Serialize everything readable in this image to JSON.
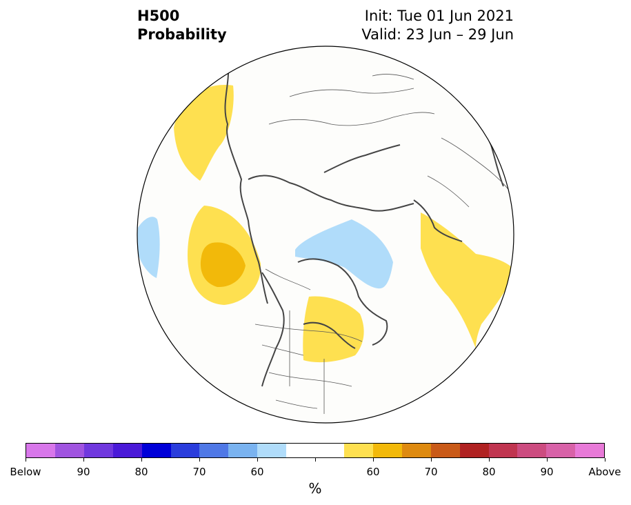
{
  "title": {
    "line1": "H500",
    "line2": "Probability"
  },
  "info": {
    "init": "Init: Tue 01 Jun 2021",
    "valid": "Valid: 23 Jun – 29 Jun"
  },
  "colorbar": {
    "colors": [
      "#d877ea",
      "#a054e0",
      "#7038de",
      "#4a1ad8",
      "#0000d8",
      "#2a3ddc",
      "#4f78e6",
      "#7ab3f0",
      "#b0dcfa",
      "#ffffff",
      "#ffffff",
      "#fee050",
      "#f2b90a",
      "#de8a10",
      "#c95a18",
      "#b02222",
      "#c03550",
      "#cc4c80",
      "#d862a8",
      "#e87ad8"
    ],
    "labels": [
      "Below",
      "90",
      "80",
      "70",
      "60",
      "60",
      "70",
      "80",
      "90",
      "Above"
    ],
    "unit": "%"
  },
  "map": {
    "projection": "north-polar-stereographic",
    "anomalies": [
      {
        "name": "northeast-pacific-above",
        "category": "Above",
        "level": "50-60",
        "color": "#fee050"
      },
      {
        "name": "east-pacific-above",
        "category": "Above",
        "level": "50-60",
        "color": "#fee050"
      },
      {
        "name": "east-pacific-above-core",
        "category": "Above",
        "level": "60-70",
        "color": "#f2b90a"
      },
      {
        "name": "west-pacific-below",
        "category": "Below",
        "level": "50-60",
        "color": "#b0dcfa"
      },
      {
        "name": "greenland-below",
        "category": "Below",
        "level": "50-60",
        "color": "#b0dcfa"
      },
      {
        "name": "great-lakes-above",
        "category": "Above",
        "level": "50-60",
        "color": "#fee050"
      },
      {
        "name": "siberia-above",
        "category": "Above",
        "level": "50-60",
        "color": "#fee050"
      }
    ]
  }
}
